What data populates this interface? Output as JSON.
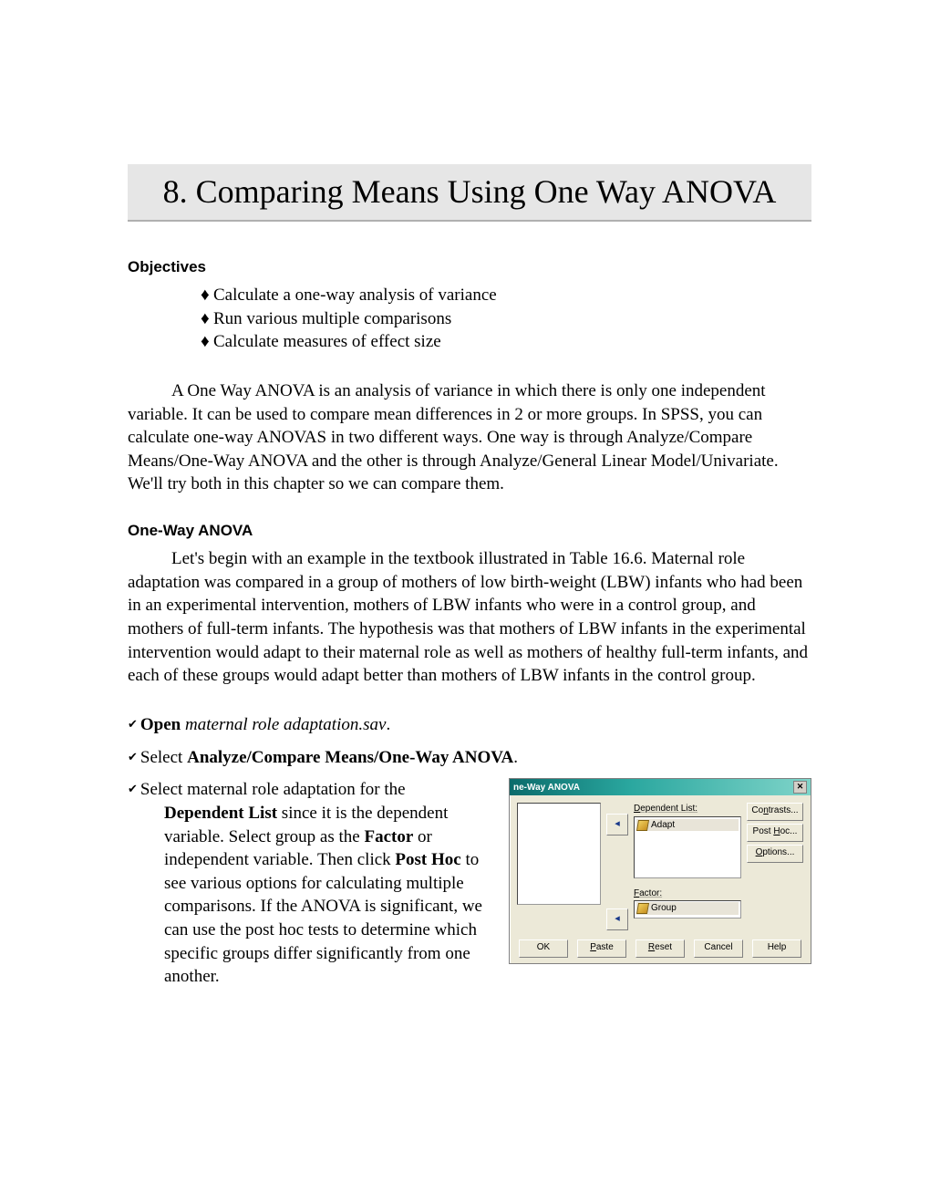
{
  "title": "8. Comparing Means Using One Way ANOVA",
  "objectives_heading": "Objectives",
  "objectives": [
    "Calculate a one-way analysis of variance",
    "Run various multiple comparisons",
    "Calculate measures of effect size"
  ],
  "intro_para": "A One Way ANOVA is an analysis of variance in which there is only one independent variable.  It can be used to compare mean differences in 2 or more groups. In SPSS, you can calculate one-way ANOVAS in two different ways.  One way is through Analyze/Compare Means/One-Way ANOVA and the other is through Analyze/General Linear Model/Univariate.  We'll try both in this chapter so we can compare them.",
  "section2_heading": "One-Way ANOVA",
  "section2_para": "Let's begin with an example in the textbook illustrated in Table 16.6.  Maternal role adaptation was compared in a group of mothers of low birth-weight (LBW) infants who had been in an experimental intervention, mothers of LBW infants who were in a control group, and mothers of full-term infants.  The hypothesis was that mothers of LBW infants in the experimental intervention would adapt to their maternal role as well as mothers of healthy full-term infants, and each of these groups would adapt better than mothers of LBW infants in the control group.",
  "steps": {
    "open_bold": "Open",
    "open_italic": " maternal role adaptation.sav",
    "open_suffix": ".",
    "select_prefix": "Select ",
    "select_bold": "Analyze/Compare Means/One-Way ANOVA",
    "select_suffix": ".",
    "step3_1": "Select maternal role adaptation for the ",
    "step3_b1": "Dependent List",
    "step3_2": " since it is the dependent variable.  Select group as the ",
    "step3_b2": "Factor",
    "step3_3": " or independent variable.  Then click ",
    "step3_b3": "Post Hoc",
    "step3_4": " to see various options for calculating multiple comparisons.  If the ANOVA is significant, we can use the post hoc tests to determine which specific groups differ significantly from one another."
  },
  "dialog": {
    "title": "ne-Way ANOVA",
    "dep_list_label": "Dependent List:",
    "dep_item": "Adapt",
    "factor_label": "Factor:",
    "factor_item": "Group",
    "right_buttons": {
      "contrasts": "Contrasts...",
      "posthoc": "Post Hoc...",
      "options": "Options..."
    },
    "bottom_buttons": {
      "ok": "OK",
      "paste": "Paste",
      "reset": "Reset",
      "cancel": "Cancel",
      "help": "Help"
    }
  },
  "colors": {
    "title_bg": "#e6e6e6",
    "dialog_bg": "#ece9d8",
    "titlebar_gradient_from": "#0a6b6b",
    "titlebar_gradient_to": "#7fd4c9"
  }
}
